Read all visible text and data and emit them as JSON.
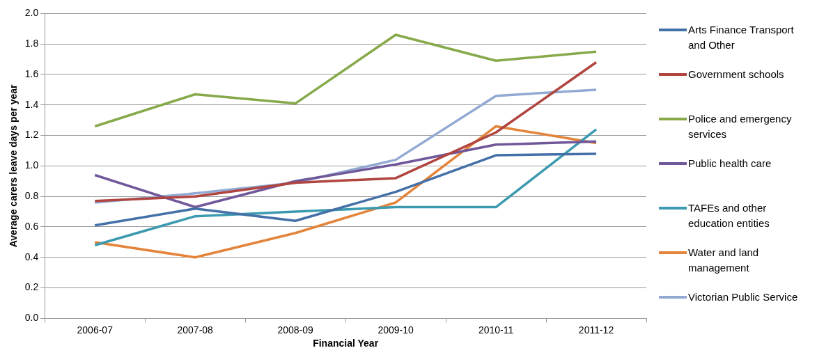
{
  "chart_data": {
    "type": "line",
    "xlabel": "Financial Year",
    "ylabel": "Average carers leave days per year",
    "categories": [
      "2006-07",
      "2007-08",
      "2008-09",
      "2009-10",
      "2010-11",
      "2011-12"
    ],
    "ylim": [
      0,
      2
    ],
    "yticks": [
      {
        "value": 0,
        "label": "0.0"
      },
      {
        "value": 0.2,
        "label": "0.2"
      },
      {
        "value": 0.4,
        "label": "0.4"
      },
      {
        "value": 0.6,
        "label": "0.6"
      },
      {
        "value": 0.8,
        "label": "0.8"
      },
      {
        "value": 1,
        "label": "1.0"
      },
      {
        "value": 1.2,
        "label": "1.2"
      },
      {
        "value": 1.4,
        "label": "1.4"
      },
      {
        "value": 1.6,
        "label": "1.6"
      },
      {
        "value": 1.8,
        "label": "1.8"
      },
      {
        "value": 2,
        "label": "2.0"
      }
    ],
    "grid": "y",
    "legend": "right",
    "marker": "none",
    "line_style": "solid",
    "series": [
      {
        "name": "Arts Finance Transport and Other",
        "color": "#4470a8",
        "values": [
          0.61,
          0.72,
          0.64,
          0.83,
          1.07,
          1.08
        ]
      },
      {
        "name": "Government schools",
        "color": "#b0443f",
        "values": [
          0.77,
          0.8,
          0.89,
          0.92,
          1.22,
          1.68
        ]
      },
      {
        "name": "Police and emergency services",
        "color": "#86a94a",
        "values": [
          1.26,
          1.47,
          1.41,
          1.86,
          1.69,
          1.75
        ]
      },
      {
        "name": "Public health care",
        "color": "#70579a",
        "values": [
          0.94,
          0.73,
          0.9,
          1.01,
          1.14,
          1.16
        ]
      },
      {
        "name": "TAFEs and other education entities",
        "color": "#3c9ab0",
        "values": [
          0.48,
          0.67,
          0.7,
          0.73,
          0.73,
          1.24
        ]
      },
      {
        "name": "Water and land management",
        "color": "#e3843a",
        "values": [
          0.5,
          0.4,
          0.56,
          0.76,
          1.26,
          1.15
        ]
      },
      {
        "name": "Victorian Public Service",
        "color": "#92aad3",
        "values": [
          0.76,
          0.82,
          0.89,
          1.04,
          1.46,
          1.5
        ]
      }
    ]
  }
}
